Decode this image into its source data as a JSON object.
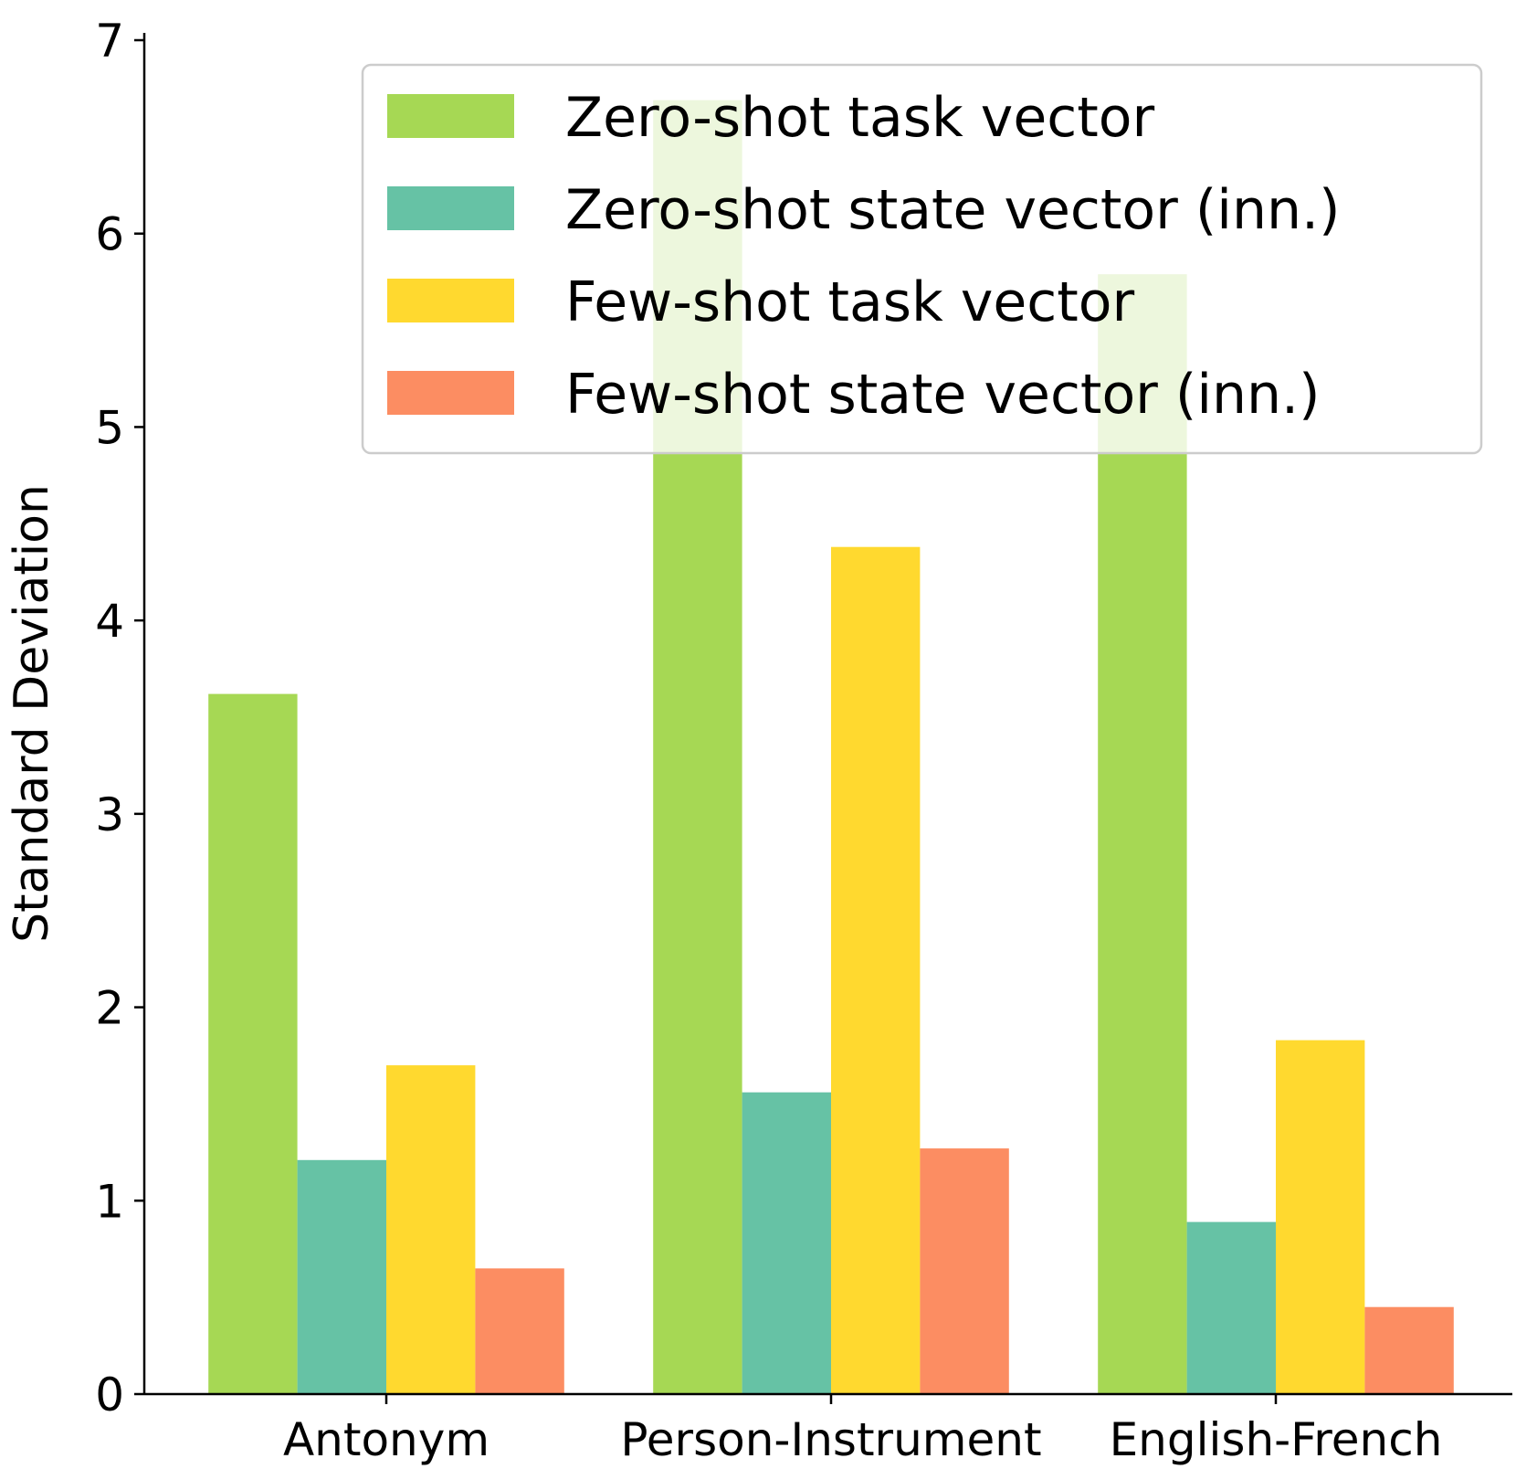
{
  "chart_data": {
    "type": "bar",
    "title": "",
    "xlabel": "",
    "ylabel": "Standard Deviation",
    "ylim": [
      0,
      7
    ],
    "yticks": [
      0,
      1,
      2,
      3,
      4,
      5,
      6,
      7
    ],
    "grid": false,
    "legend_position": "top-right",
    "categories": [
      "Antonym",
      "Person-Instrument",
      "English-French"
    ],
    "series": [
      {
        "name": "Zero-shot task vector",
        "color": "#a6d854",
        "values": [
          3.62,
          6.69,
          5.79
        ]
      },
      {
        "name": "Zero-shot state vector (inn.)",
        "color": "#66c2a5",
        "values": [
          1.21,
          1.56,
          0.89
        ]
      },
      {
        "name": "Few-shot task vector",
        "color": "#ffd92f",
        "values": [
          1.7,
          4.38,
          1.83
        ]
      },
      {
        "name": "Few-shot state vector (inn.)",
        "color": "#fc8d62",
        "values": [
          0.65,
          1.27,
          0.45
        ]
      }
    ]
  }
}
